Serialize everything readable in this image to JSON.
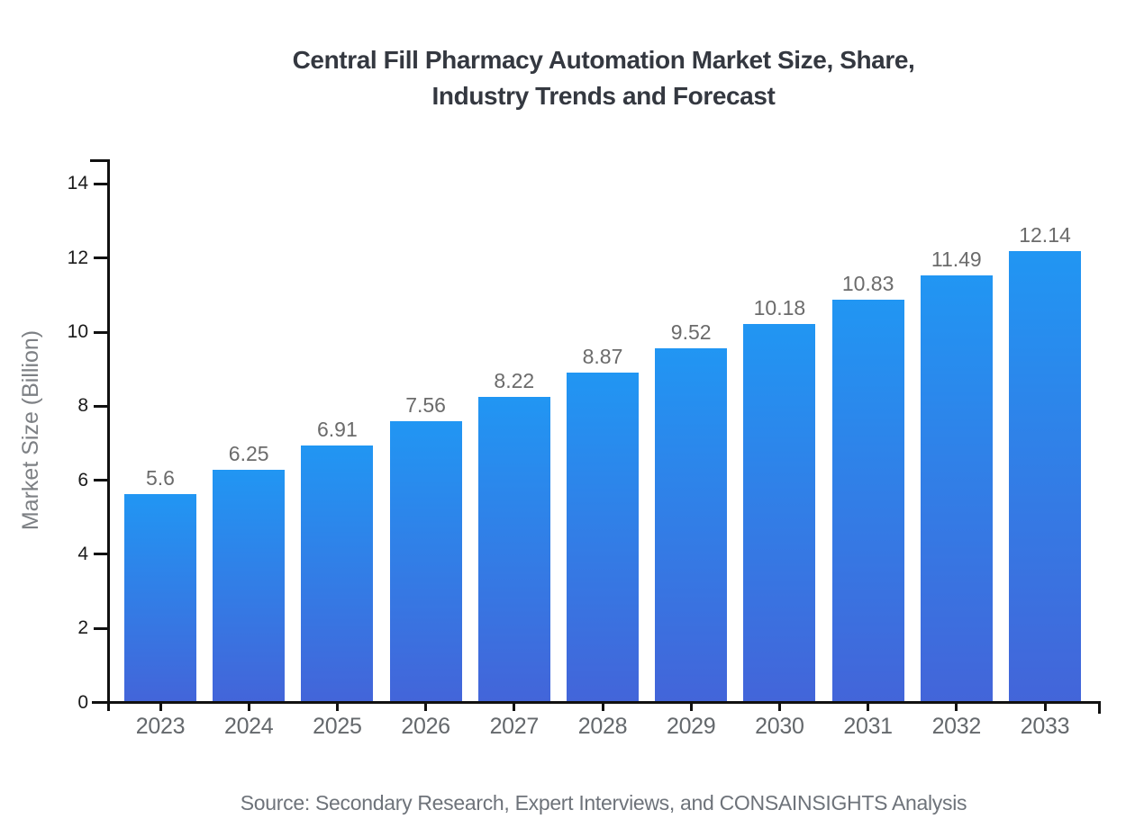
{
  "page": {
    "background": "#ffffff"
  },
  "header": {
    "title_line1": "Central Fill Pharmacy Automation Market Size, Share,",
    "title_line2": "Industry Trends and Forecast"
  },
  "footer": {
    "source": "Source: Secondary Research, Expert Interviews, and CONSAINSIGHTS Analysis"
  },
  "chart_data": {
    "type": "bar",
    "title": "Central Fill Pharmacy Automation Market Size, Share, Industry Trends and Forecast",
    "categories": [
      "2023",
      "2024",
      "2025",
      "2026",
      "2027",
      "2028",
      "2029",
      "2030",
      "2031",
      "2032",
      "2033"
    ],
    "values": [
      5.6,
      6.25,
      6.91,
      7.56,
      8.22,
      8.87,
      9.52,
      10.18,
      10.83,
      11.49,
      12.14
    ],
    "value_labels": [
      "5.6",
      "6.25",
      "6.91",
      "7.56",
      "8.22",
      "8.87",
      "9.52",
      "10.18",
      "10.83",
      "11.49",
      "12.14"
    ],
    "xlabel": "",
    "ylabel": "Market Size (Billion)",
    "ylim": [
      0,
      14
    ],
    "yticks": [
      0,
      2,
      4,
      6,
      8,
      10,
      12,
      14
    ],
    "grid": false,
    "legend": "none",
    "colors": {
      "bar_top": "#2196f3",
      "bar_bottom": "#4365d9",
      "axis": "#111111",
      "title": "#343840",
      "y_tick_label": "#1a1a1a",
      "category_label": "#64686c",
      "value_label": "#6b6b6b",
      "axis_label": "#7d8084",
      "source": "#6e737a"
    }
  }
}
